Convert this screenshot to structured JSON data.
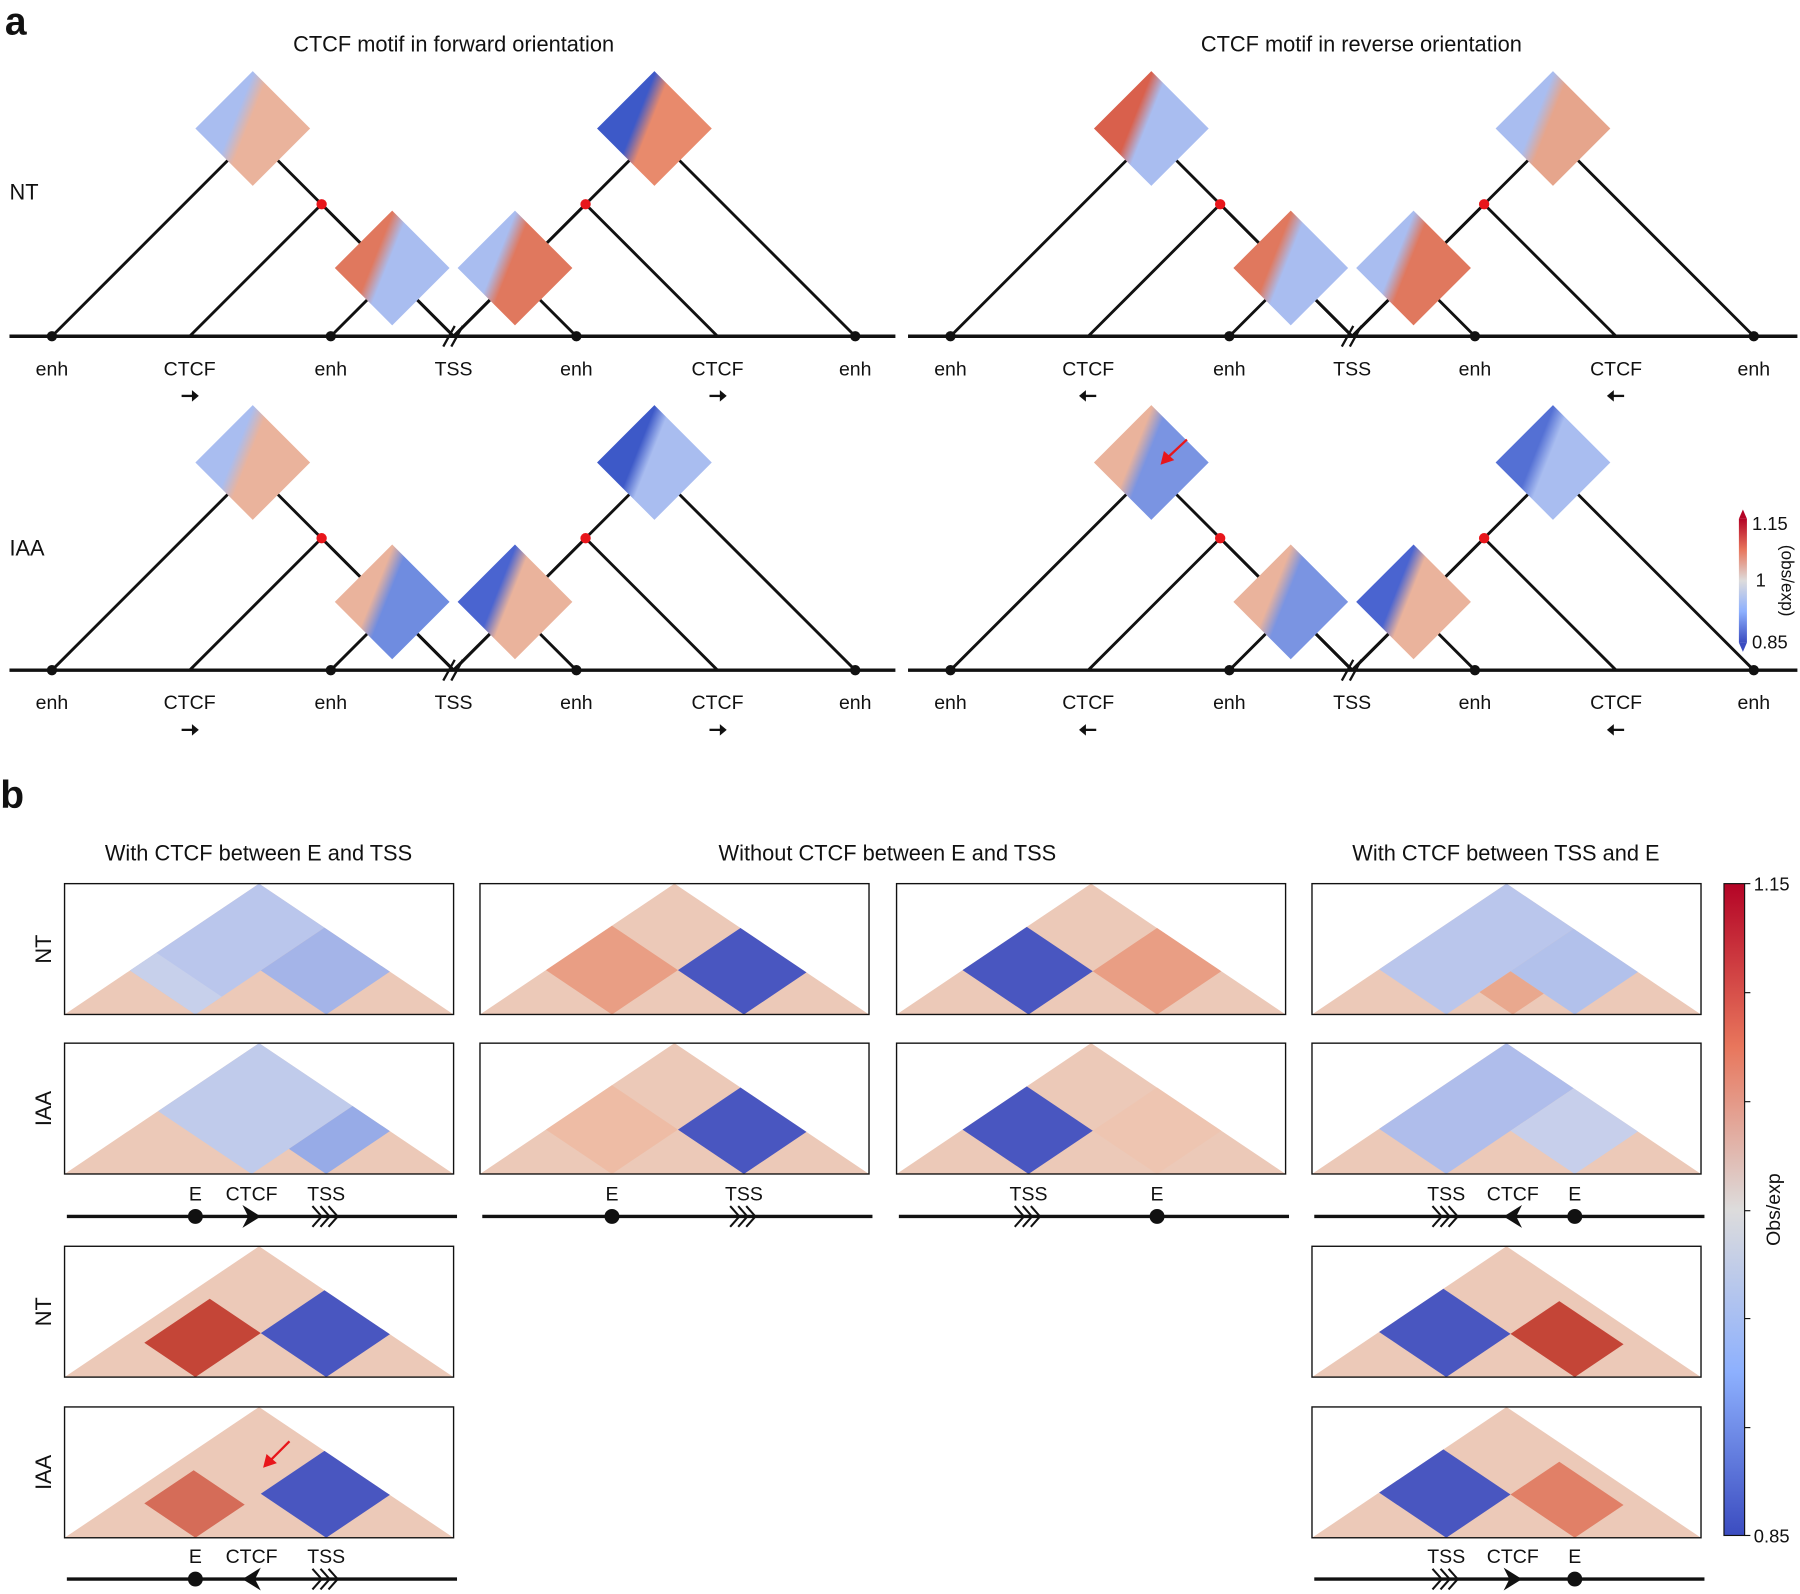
{
  "panel_a": {
    "label": "a",
    "titles": [
      "CTCF motif in forward orientation",
      "CTCF motif in reverse orientation"
    ],
    "row_labels": [
      "NT",
      "IAA"
    ],
    "loci": [
      "enh",
      "CTCF",
      "enh",
      "TSS",
      "enh",
      "CTCF",
      "enh"
    ],
    "colorbar": {
      "ticks": [
        "1.15",
        "1",
        "0.85"
      ],
      "label": "(obs/exp)"
    }
  },
  "panel_b": {
    "label": "b",
    "titles": [
      "With CTCF between E and TSS",
      "Without CTCF between E and TSS",
      "With CTCF between TSS and E"
    ],
    "row_labels": [
      "NT",
      "IAA",
      "NT",
      "IAA"
    ],
    "tracks": [
      [
        "E",
        "CTCF",
        "TSS"
      ],
      [
        "E",
        "TSS"
      ],
      [
        "TSS",
        "E"
      ],
      [
        "TSS",
        "CTCF",
        "E"
      ],
      [
        "E",
        "CTCF",
        "TSS"
      ],
      [
        "TSS",
        "CTCF",
        "E"
      ]
    ],
    "colorbar": {
      "ticks": [
        "1.15",
        "0.85"
      ],
      "label": "Obs/exp"
    }
  }
}
